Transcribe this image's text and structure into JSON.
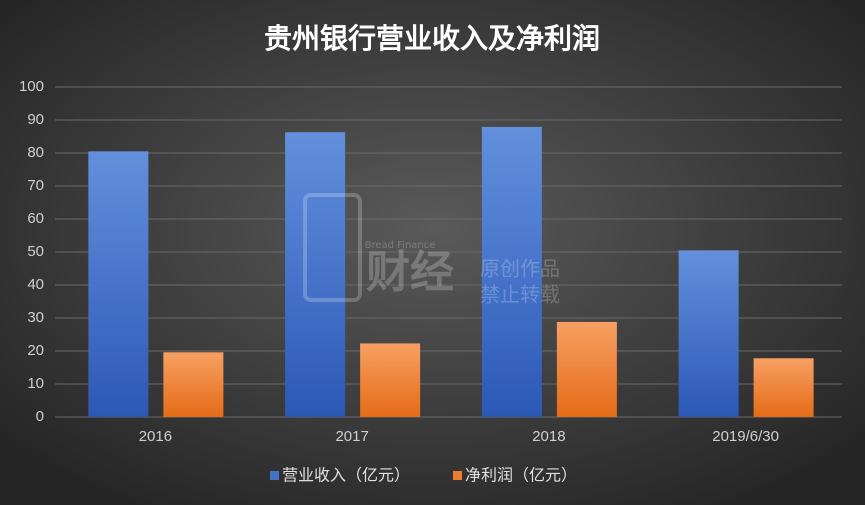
{
  "chart_data": {
    "type": "bar",
    "title": "贵州银行营业收入及净利润",
    "categories": [
      "2016",
      "2017",
      "2018",
      "2019/6/30"
    ],
    "series": [
      {
        "name": "营业收入（亿元）",
        "color": "#4472c4",
        "values": [
          80.5,
          86.3,
          87.9,
          50.5
        ]
      },
      {
        "name": "净利润（亿元）",
        "color": "#ed7d31",
        "values": [
          19.6,
          22.3,
          28.8,
          17.8
        ]
      }
    ],
    "ylim": [
      0,
      100
    ],
    "yticks": [
      0,
      10,
      20,
      30,
      40,
      50,
      60,
      70,
      80,
      90,
      100
    ],
    "grid": true,
    "legend": "bottom",
    "annotations": [
      "财经",
      "Bread Finance",
      "原创作品",
      "禁止转载"
    ]
  }
}
